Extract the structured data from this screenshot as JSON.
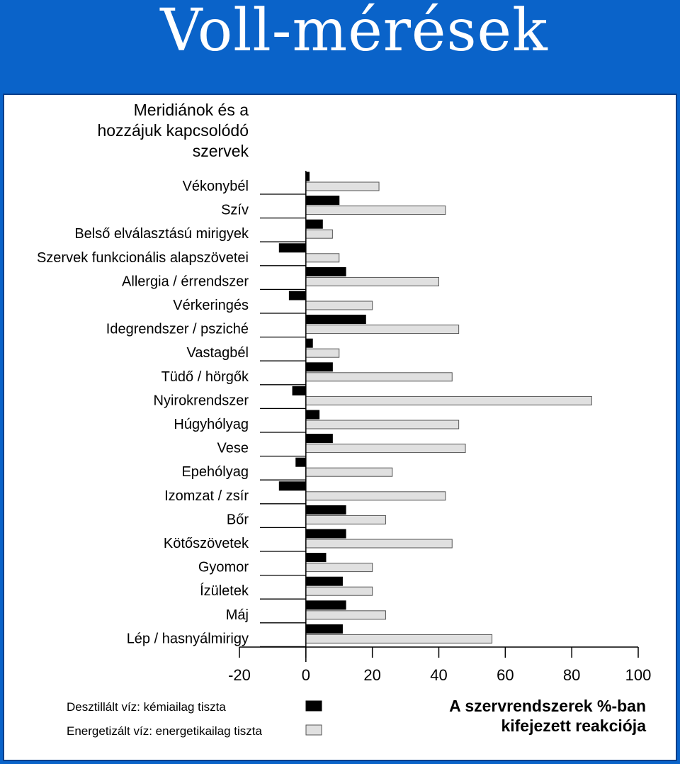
{
  "page": {
    "title": "Voll-mérések"
  },
  "legend": {
    "black_label": "Desztillált víz: kémiailag tiszta",
    "grey_label": "Energetizált víz: energetikailag tiszta",
    "black_color": "#000000",
    "grey_color": "#e0e0e0"
  },
  "footer": {
    "line1": "A szervrendszerek %-ban",
    "line2": "kifejezett reakciója"
  },
  "chart_data": {
    "type": "bar",
    "orientation": "horizontal",
    "category_header": [
      "Meridiánok és a",
      "hozzájuk kapcsolódó",
      "szervek"
    ],
    "categories": [
      "Vékonybél",
      "Szív",
      "Belső elválasztású mirigyek",
      "Szervek funkcionális alapszövetei",
      "Allergia / érrendszer",
      "Vérkeringés",
      "Idegrendszer / psziché",
      "Vastagbél",
      "Tüdő / hörgők",
      "Nyirokrendszer",
      "Húgyhólyag",
      "Vese",
      "Epehólyag",
      "Izomzat / zsír",
      "Bőr",
      "Kötőszövetek",
      "Gyomor",
      "Ízületek",
      "Máj",
      "Lép / hasnyálmirigy"
    ],
    "series": [
      {
        "name": "Desztillált víz: kémiailag tiszta",
        "values": [
          1,
          10,
          5,
          -8,
          12,
          -5,
          18,
          2,
          8,
          -4,
          4,
          8,
          -3,
          -8,
          12,
          12,
          6,
          11,
          12,
          11
        ]
      },
      {
        "name": "Energetizált víz: energetikailag tiszta",
        "values": [
          22,
          42,
          8,
          10,
          40,
          20,
          46,
          10,
          44,
          86,
          46,
          48,
          26,
          42,
          24,
          44,
          20,
          20,
          24,
          56
        ]
      }
    ],
    "xlim": [
      -20,
      100
    ],
    "xticks": [
      -20,
      0,
      20,
      40,
      60,
      80,
      100
    ],
    "grid": false,
    "legend_position": "bottom-left"
  }
}
